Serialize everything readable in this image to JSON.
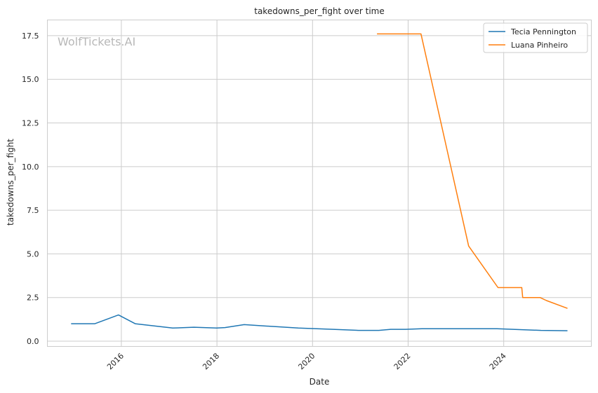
{
  "chart_data": {
    "type": "line",
    "title": "takedowns_per_fight over time",
    "xlabel": "Date",
    "ylabel": "takedowns_per_fight",
    "watermark": "WolfTickets.AI",
    "x_ticks": [
      "2016",
      "2018",
      "2020",
      "2022",
      "2024"
    ],
    "y_ticks": [
      "0.0",
      "2.5",
      "5.0",
      "7.5",
      "10.0",
      "12.5",
      "15.0",
      "17.5"
    ],
    "xlim": [
      "2014-06-15",
      "2025-11-01"
    ],
    "ylim": [
      -0.3,
      18.4
    ],
    "grid": true,
    "legend_position": "top-right",
    "series": [
      {
        "name": "Tecia Pennington",
        "color": "#1f77b4",
        "points": [
          [
            "2014-12-13",
            1.0
          ],
          [
            "2015-06-13",
            1.0
          ],
          [
            "2015-12-10",
            1.5
          ],
          [
            "2016-04-16",
            1.0
          ],
          [
            "2017-01-28",
            0.75
          ],
          [
            "2017-07-08",
            0.8
          ],
          [
            "2017-12-30",
            0.75
          ],
          [
            "2018-03-03",
            0.78
          ],
          [
            "2018-07-28",
            0.95
          ],
          [
            "2019-09-14",
            0.75
          ],
          [
            "2020-06-06",
            0.68
          ],
          [
            "2020-12-19",
            0.62
          ],
          [
            "2021-05-22",
            0.62
          ],
          [
            "2021-08-21",
            0.68
          ],
          [
            "2021-12-11",
            0.68
          ],
          [
            "2022-04-16",
            0.71
          ],
          [
            "2023-11-11",
            0.71
          ],
          [
            "2024-10-12",
            0.62
          ],
          [
            "2025-05-03",
            0.6
          ]
        ]
      },
      {
        "name": "Luana Pinheiro",
        "color": "#ff7f0e",
        "points": [
          [
            "2021-05-08",
            17.6
          ],
          [
            "2022-04-09",
            17.6
          ],
          [
            "2023-04-08",
            5.45
          ],
          [
            "2023-11-18",
            3.07
          ],
          [
            "2024-05-18",
            3.07
          ],
          [
            "2024-05-25",
            2.5
          ],
          [
            "2024-10-05",
            2.5
          ],
          [
            "2024-11-23",
            2.33
          ],
          [
            "2025-05-03",
            1.88
          ]
        ]
      }
    ]
  }
}
